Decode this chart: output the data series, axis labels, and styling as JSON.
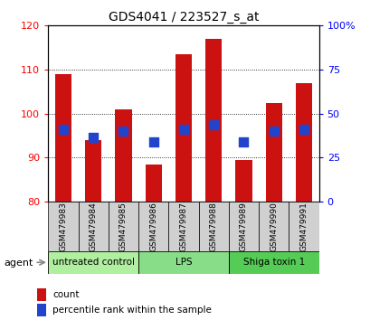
{
  "title": "GDS4041 / 223527_s_at",
  "samples": [
    "GSM479983",
    "GSM479984",
    "GSM479985",
    "GSM479986",
    "GSM479987",
    "GSM479988",
    "GSM479989",
    "GSM479990",
    "GSM479991"
  ],
  "bar_heights": [
    109.0,
    94.0,
    101.0,
    88.5,
    113.5,
    117.0,
    89.5,
    102.5,
    107.0
  ],
  "bar_base": 80,
  "blue_y_left": [
    96.5,
    94.5,
    96.0,
    93.5,
    96.5,
    97.5,
    93.5,
    96.0,
    96.5
  ],
  "bar_color": "#cc1111",
  "blue_color": "#2244cc",
  "ylim_left": [
    80,
    120
  ],
  "ylim_right": [
    0,
    100
  ],
  "yticks_left": [
    80,
    90,
    100,
    110,
    120
  ],
  "yticks_right": [
    0,
    25,
    50,
    75,
    100
  ],
  "ytick_labels_left": [
    "80",
    "90",
    "100",
    "110",
    "120"
  ],
  "ytick_labels_right": [
    "0",
    "25",
    "50",
    "75",
    "100%"
  ],
  "groups": [
    {
      "label": "untreated control",
      "start": 0,
      "end": 3,
      "color": "#b0eea0"
    },
    {
      "label": "LPS",
      "start": 3,
      "end": 6,
      "color": "#88dd88"
    },
    {
      "label": "Shiga toxin 1",
      "start": 6,
      "end": 9,
      "color": "#55cc55"
    }
  ],
  "agent_label": "agent",
  "legend_count_label": "count",
  "legend_pct_label": "percentile rank within the sample",
  "bg_color": "#ffffff",
  "gray_box_color": "#d0d0d0",
  "bar_width": 0.55,
  "blue_marker_size": 55
}
